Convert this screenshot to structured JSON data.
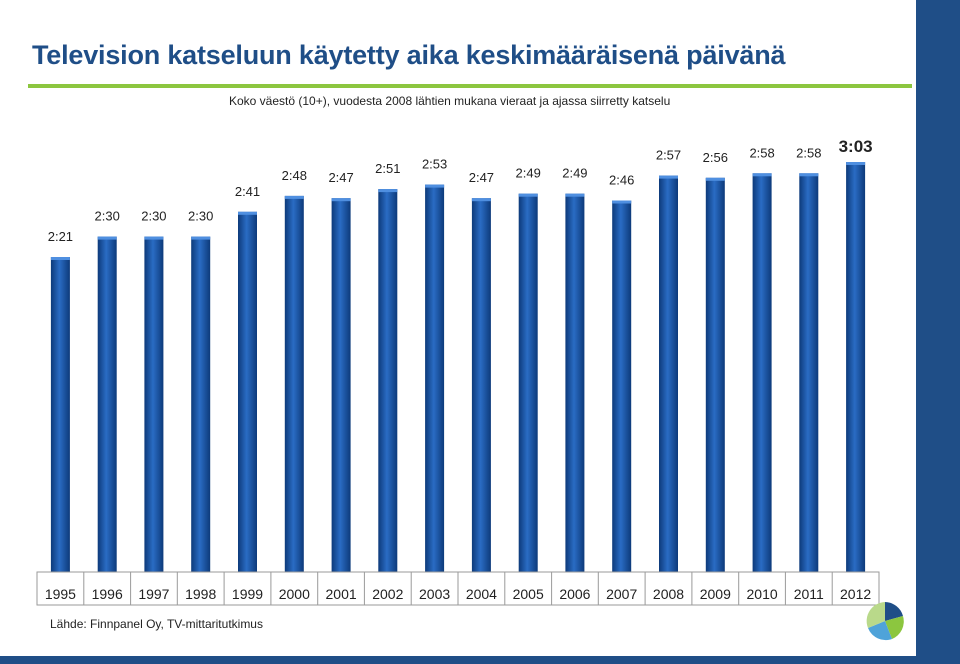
{
  "title": "Television katseluun käytetty aika keskimääräisenä päivänä",
  "subtitle": "Koko väestö (10+), vuodesta 2008 lähtien mukana vieraat ja ajassa siirretty katselu",
  "source": "Lähde: Finnpanel Oy, TV-mittaritutkimus",
  "colors": {
    "title": "#1f4e87",
    "rule": "#8cc63f",
    "bar": "#1b55a8",
    "band": "#1f4e87"
  },
  "logo_icon": "finnpanel-logo-icon",
  "chart_data": {
    "type": "bar",
    "categories": [
      "1995",
      "1996",
      "1997",
      "1998",
      "1999",
      "2000",
      "2001",
      "2002",
      "2003",
      "2004",
      "2005",
      "2006",
      "2007",
      "2008",
      "2009",
      "2010",
      "2011",
      "2012"
    ],
    "values": [
      141,
      150,
      150,
      150,
      161,
      168,
      167,
      171,
      173,
      167,
      169,
      169,
      166,
      177,
      176,
      178,
      178,
      183
    ],
    "data_labels": [
      "2:21",
      "2:30",
      "2:30",
      "2:30",
      "2:41",
      "2:48",
      "2:47",
      "2:51",
      "2:53",
      "2:47",
      "2:49",
      "2:49",
      "2:46",
      "2:57",
      "2:56",
      "2:58",
      "2:58",
      "3:03"
    ],
    "unit": "minutes",
    "ylim": [
      0,
      190
    ],
    "grid": false,
    "legend": "none"
  }
}
